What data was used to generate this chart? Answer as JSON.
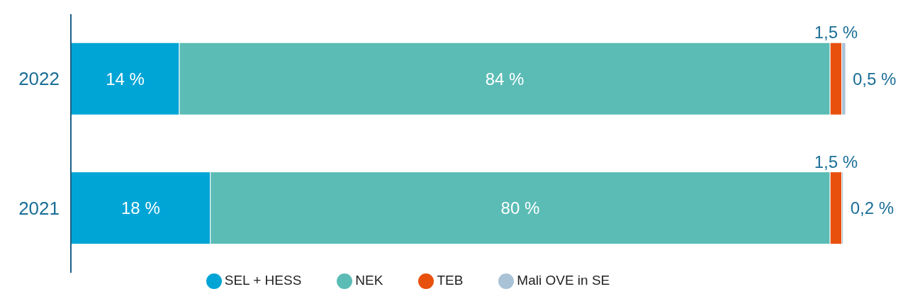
{
  "chart_data": {
    "type": "bar",
    "orientation": "horizontal",
    "stacked": true,
    "categories": [
      "2022",
      "2021"
    ],
    "xlim": [
      0,
      100
    ],
    "tick_labels": "y",
    "legend": "bottom",
    "grid": false,
    "series": [
      {
        "name": "SEL + HESS",
        "color": "#00a5d6",
        "values": [
          14,
          18
        ],
        "value_labels": [
          "14 %",
          "18 %"
        ]
      },
      {
        "name": "NEK",
        "color": "#5bbcb5",
        "values": [
          84,
          80
        ],
        "value_labels": [
          "84 %",
          "80 %"
        ]
      },
      {
        "name": "TEB",
        "color": "#e8500e",
        "values": [
          1.5,
          1.5
        ],
        "value_labels": [
          "1,5 %",
          "1,5 %"
        ]
      },
      {
        "name": "Mali OVE in SE",
        "color": "#a9c2d6",
        "values": [
          0.5,
          0.2
        ],
        "value_labels": [
          "0,5 %",
          "0,2 %"
        ]
      }
    ]
  }
}
